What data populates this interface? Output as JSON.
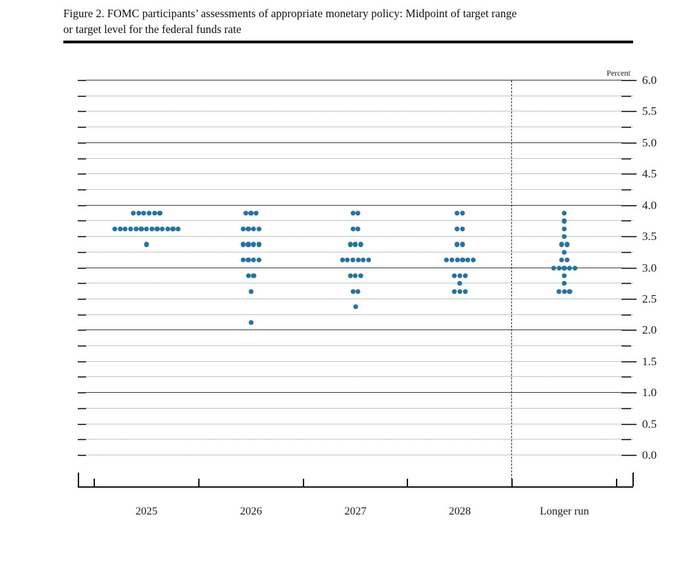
{
  "title": {
    "line1": "Figure 2. FOMC participants’ assessments of appropriate monetary policy: Midpoint of target range",
    "line2": "or target level for the federal funds rate"
  },
  "chart_data": {
    "type": "scatter",
    "title": "FOMC participants’ assessments of appropriate monetary policy: Midpoint of target range or target level for the federal funds rate",
    "ylabel": "Percent",
    "ylim": [
      0.0,
      6.0
    ],
    "y_grid_step": 0.25,
    "y_label_step": 0.5,
    "y_tick_labels": [
      "6.0",
      "5.5",
      "5.0",
      "4.5",
      "4.0",
      "3.5",
      "3.0",
      "2.5",
      "2.0",
      "1.5",
      "1.0",
      "0.5",
      "0.0"
    ],
    "grid": "on",
    "legend_position": "none",
    "categories": [
      "2025",
      "2026",
      "2027",
      "2028",
      "Longer run"
    ],
    "series": [
      {
        "name": "2025",
        "dots": [
          {
            "value": 3.875,
            "count": 6
          },
          {
            "value": 3.625,
            "count": 13
          },
          {
            "value": 3.375,
            "count": 1
          }
        ]
      },
      {
        "name": "2026",
        "dots": [
          {
            "value": 3.875,
            "count": 3
          },
          {
            "value": 3.625,
            "count": 4
          },
          {
            "value": 3.375,
            "count": 4
          },
          {
            "value": 3.125,
            "count": 4
          },
          {
            "value": 2.875,
            "count": 2
          },
          {
            "value": 2.625,
            "count": 1
          },
          {
            "value": 2.125,
            "count": 1
          }
        ]
      },
      {
        "name": "2027",
        "dots": [
          {
            "value": 3.875,
            "count": 2
          },
          {
            "value": 3.625,
            "count": 2
          },
          {
            "value": 3.375,
            "count": 3
          },
          {
            "value": 3.125,
            "count": 6
          },
          {
            "value": 2.875,
            "count": 3
          },
          {
            "value": 2.625,
            "count": 2
          },
          {
            "value": 2.375,
            "count": 1
          }
        ]
      },
      {
        "name": "2028",
        "dots": [
          {
            "value": 3.875,
            "count": 2
          },
          {
            "value": 3.625,
            "count": 2
          },
          {
            "value": 3.375,
            "count": 2
          },
          {
            "value": 3.125,
            "count": 6
          },
          {
            "value": 2.875,
            "count": 3
          },
          {
            "value": 2.75,
            "count": 1
          },
          {
            "value": 2.625,
            "count": 3
          }
        ]
      },
      {
        "name": "Longer run",
        "dots": [
          {
            "value": 3.875,
            "count": 1
          },
          {
            "value": 3.75,
            "count": 1
          },
          {
            "value": 3.625,
            "count": 1
          },
          {
            "value": 3.5,
            "count": 1
          },
          {
            "value": 3.375,
            "count": 2
          },
          {
            "value": 3.25,
            "count": 1
          },
          {
            "value": 3.125,
            "count": 2
          },
          {
            "value": 3.0,
            "count": 5
          },
          {
            "value": 2.875,
            "count": 1
          },
          {
            "value": 2.75,
            "count": 1
          },
          {
            "value": 2.625,
            "count": 3
          }
        ]
      }
    ],
    "dot_color": "#2374A6",
    "separator_before_category": "Longer run"
  }
}
